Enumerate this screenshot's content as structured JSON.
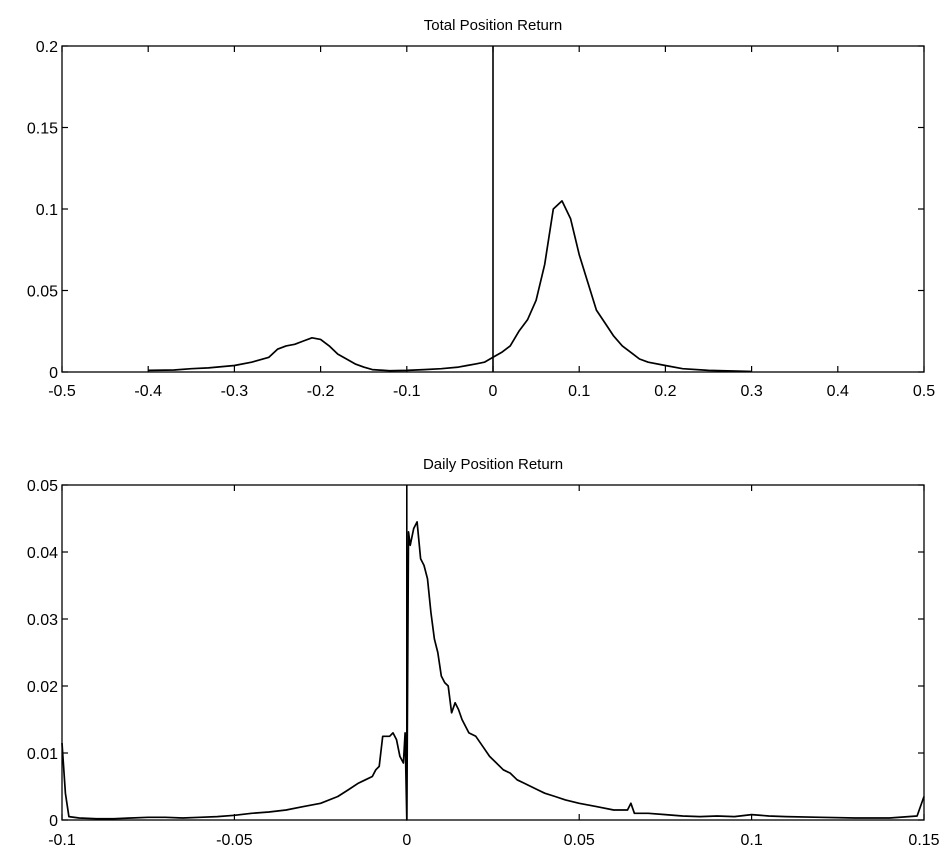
{
  "chart_data": [
    {
      "type": "line",
      "title": "Total Position Return",
      "xlabel": "",
      "ylabel": "",
      "xlim": [
        -0.5,
        0.5
      ],
      "ylim": [
        0,
        0.2
      ],
      "xticks": [
        "-0.5",
        "-0.4",
        "-0.3",
        "-0.2",
        "-0.1",
        "0",
        "0.1",
        "0.2",
        "0.3",
        "0.4",
        "0.5"
      ],
      "yticks": [
        "0",
        "0.05",
        "0.1",
        "0.15",
        "0.2"
      ],
      "grid": false,
      "reference_line_x": 0,
      "series": [
        {
          "x": [
            -0.4,
            -0.37,
            -0.35,
            -0.33,
            -0.3,
            -0.28,
            -0.26,
            -0.25,
            -0.24,
            -0.23,
            -0.22,
            -0.21,
            -0.2,
            -0.19,
            -0.18,
            -0.17,
            -0.16,
            -0.15,
            -0.14,
            -0.12,
            -0.1,
            -0.08,
            -0.06,
            -0.04,
            -0.03,
            -0.02,
            -0.01,
            0,
            0.01,
            0.02,
            0.03,
            0.04,
            0.05,
            0.06,
            0.07,
            0.08,
            0.09,
            0.1,
            0.11,
            0.12,
            0.13,
            0.14,
            0.15,
            0.16,
            0.17,
            0.18,
            0.2,
            0.22,
            0.25,
            0.3
          ],
          "y": [
            0.001,
            0.0012,
            0.002,
            0.0025,
            0.004,
            0.006,
            0.009,
            0.014,
            0.016,
            0.017,
            0.019,
            0.021,
            0.02,
            0.016,
            0.011,
            0.008,
            0.005,
            0.003,
            0.0015,
            0.0008,
            0.001,
            0.0015,
            0.002,
            0.003,
            0.004,
            0.005,
            0.006,
            0.009,
            0.012,
            0.016,
            0.025,
            0.032,
            0.044,
            0.066,
            0.1,
            0.105,
            0.094,
            0.072,
            0.055,
            0.038,
            0.03,
            0.022,
            0.016,
            0.012,
            0.008,
            0.006,
            0.004,
            0.002,
            0.001,
            0.0003
          ]
        }
      ]
    },
    {
      "type": "line",
      "title": "Daily Position Return",
      "xlabel": "",
      "ylabel": "",
      "xlim": [
        -0.1,
        0.15
      ],
      "ylim": [
        0,
        0.05
      ],
      "xticks": [
        "-0.1",
        "-0.05",
        "0",
        "0.05",
        "0.1",
        "0.15"
      ],
      "yticks": [
        "0",
        "0.01",
        "0.02",
        "0.03",
        "0.04",
        "0.05"
      ],
      "grid": false,
      "reference_line_x": 0,
      "series": [
        {
          "x": [
            -0.1,
            -0.099,
            -0.098,
            -0.095,
            -0.09,
            -0.085,
            -0.08,
            -0.075,
            -0.07,
            -0.065,
            -0.06,
            -0.055,
            -0.05,
            -0.045,
            -0.04,
            -0.035,
            -0.03,
            -0.025,
            -0.02,
            -0.017,
            -0.014,
            -0.012,
            -0.01,
            -0.009,
            -0.008,
            -0.007,
            -0.006,
            -0.005,
            -0.004,
            -0.003,
            -0.002,
            -0.001,
            -0.0005,
            0.0,
            0.0005,
            0.001,
            0.002,
            0.003,
            0.004,
            0.005,
            0.006,
            0.007,
            0.008,
            0.009,
            0.01,
            0.011,
            0.012,
            0.013,
            0.014,
            0.015,
            0.016,
            0.018,
            0.02,
            0.022,
            0.024,
            0.026,
            0.028,
            0.03,
            0.032,
            0.034,
            0.036,
            0.038,
            0.04,
            0.043,
            0.046,
            0.05,
            0.055,
            0.06,
            0.064,
            0.065,
            0.066,
            0.07,
            0.075,
            0.08,
            0.085,
            0.09,
            0.095,
            0.1,
            0.105,
            0.11,
            0.12,
            0.13,
            0.14,
            0.148,
            0.15
          ],
          "y": [
            0.0115,
            0.004,
            0.0005,
            0.0003,
            0.0002,
            0.0002,
            0.0003,
            0.0004,
            0.0004,
            0.0003,
            0.0004,
            0.0005,
            0.0007,
            0.001,
            0.0012,
            0.0015,
            0.002,
            0.0025,
            0.0035,
            0.0045,
            0.0055,
            0.006,
            0.0065,
            0.0075,
            0.008,
            0.0125,
            0.0125,
            0.0125,
            0.013,
            0.012,
            0.0095,
            0.0085,
            0.013,
            0.0,
            0.043,
            0.041,
            0.0435,
            0.0445,
            0.039,
            0.038,
            0.036,
            0.031,
            0.027,
            0.025,
            0.0215,
            0.0205,
            0.02,
            0.016,
            0.0175,
            0.0165,
            0.015,
            0.013,
            0.0125,
            0.011,
            0.0095,
            0.0085,
            0.0075,
            0.007,
            0.006,
            0.0055,
            0.005,
            0.0045,
            0.004,
            0.0035,
            0.003,
            0.0025,
            0.002,
            0.0015,
            0.0015,
            0.0025,
            0.001,
            0.001,
            0.0008,
            0.0006,
            0.0005,
            0.0006,
            0.0005,
            0.0008,
            0.0006,
            0.0005,
            0.0004,
            0.0003,
            0.0003,
            0.0006,
            0.0035
          ]
        }
      ]
    }
  ]
}
